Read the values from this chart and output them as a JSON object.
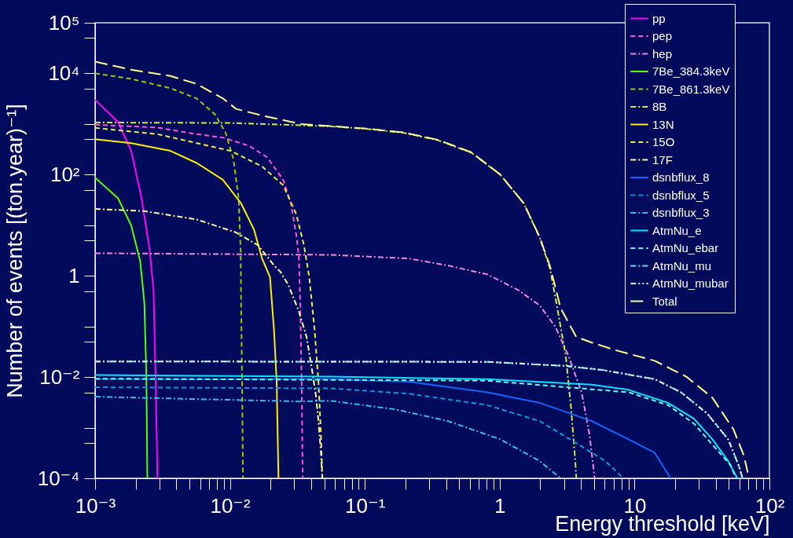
{
  "chart_data": {
    "type": "line",
    "xlabel": "Energy threshold [keV]",
    "ylabel": "Number of events [(ton.year)⁻¹]",
    "log": "xy",
    "grid": false,
    "legend": "top right",
    "xlim": [
      0.001,
      100
    ],
    "ylim": [
      0.0001,
      100000
    ],
    "xticks": [
      {
        "value": 0.001,
        "label": "10⁻³"
      },
      {
        "value": 0.002,
        "label": null
      },
      {
        "value": 0.003,
        "label": null
      },
      {
        "value": 0.004,
        "label": null
      },
      {
        "value": 0.005,
        "label": null
      },
      {
        "value": 0.006,
        "label": null
      },
      {
        "value": 0.007,
        "label": null
      },
      {
        "value": 0.008,
        "label": null
      },
      {
        "value": 0.009,
        "label": null
      },
      {
        "value": 0.01,
        "label": "10⁻²"
      },
      {
        "value": 0.02,
        "label": null
      },
      {
        "value": 0.03,
        "label": null
      },
      {
        "value": 0.04,
        "label": null
      },
      {
        "value": 0.05,
        "label": null
      },
      {
        "value": 0.06,
        "label": null
      },
      {
        "value": 0.07,
        "label": null
      },
      {
        "value": 0.08,
        "label": null
      },
      {
        "value": 0.09,
        "label": null
      },
      {
        "value": 0.1,
        "label": "10⁻¹"
      },
      {
        "value": 0.2,
        "label": null
      },
      {
        "value": 0.3,
        "label": null
      },
      {
        "value": 0.4,
        "label": null
      },
      {
        "value": 0.5,
        "label": null
      },
      {
        "value": 0.6,
        "label": null
      },
      {
        "value": 0.7,
        "label": null
      },
      {
        "value": 0.8,
        "label": null
      },
      {
        "value": 0.9,
        "label": null
      },
      1,
      {
        "value": 2,
        "label": null
      },
      {
        "value": 3,
        "label": null
      },
      {
        "value": 4,
        "label": null
      },
      {
        "value": 5,
        "label": null
      },
      {
        "value": 6,
        "label": null
      },
      {
        "value": 7,
        "label": null
      },
      {
        "value": 8,
        "label": null
      },
      {
        "value": 9,
        "label": null
      },
      10,
      {
        "value": 20,
        "label": null
      },
      {
        "value": 30,
        "label": null
      },
      {
        "value": 40,
        "label": null
      },
      {
        "value": 50,
        "label": null
      },
      {
        "value": 60,
        "label": null
      },
      {
        "value": 70,
        "label": null
      },
      {
        "value": 80,
        "label": null
      },
      {
        "value": 90,
        "label": null
      },
      {
        "value": 100,
        "label": "10²"
      }
    ],
    "yticks": [
      {
        "value": 0.0001,
        "label": "10⁻⁴"
      },
      {
        "value": 0.0005,
        "label": null
      },
      {
        "value": 0.001,
        "label": null
      },
      {
        "value": 0.005,
        "label": null
      },
      {
        "value": 0.01,
        "label": "10⁻²"
      },
      {
        "value": 0.05,
        "label": null
      },
      {
        "value": 0.1,
        "label": null
      },
      {
        "value": 0.5,
        "label": null
      },
      1,
      {
        "value": 5,
        "label": null
      },
      {
        "value": 10,
        "label": null
      },
      {
        "value": 50,
        "label": null
      },
      {
        "value": 100,
        "label": "10²"
      },
      {
        "value": 500,
        "label": null
      },
      {
        "value": 1000,
        "label": null
      },
      {
        "value": 5000,
        "label": null
      },
      {
        "value": 10000,
        "label": "10⁴"
      },
      {
        "value": 50000,
        "label": null
      },
      {
        "value": 100000,
        "label": "10⁵"
      }
    ],
    "series": [
      {
        "name": "pp",
        "color": "#ff00ff",
        "line_style": "solid",
        "x": [
          0.001,
          0.00148,
          0.00185,
          0.00221,
          0.00254,
          0.00271,
          0.00281,
          0.0029
        ],
        "values": [
          3000,
          1100,
          295,
          34,
          3.2,
          0.52,
          0.01,
          0.0001
        ]
      },
      {
        "name": "pep",
        "color": "#ff55dd",
        "line_style": "dashed",
        "x": [
          0.001,
          0.0029,
          0.00566,
          0.00886,
          0.01387,
          0.0189,
          0.0248,
          0.0283,
          0.031,
          0.0324,
          0.0332,
          0.034,
          0.0346
        ],
        "values": [
          970,
          850,
          630,
          540,
          370,
          220,
          79,
          27,
          6.5,
          2.5,
          0.29,
          0.0081,
          0.0001
        ]
      },
      {
        "name": "hep",
        "color": "#ee88dd",
        "line_style": "dashdot",
        "x": [
          0.001,
          0.0555,
          0.212,
          0.414,
          0.81,
          1.38,
          1.98,
          2.59,
          3.24,
          4.05,
          4.63,
          5.06
        ],
        "values": [
          2.8,
          2.6,
          2.2,
          1.6,
          1.07,
          0.52,
          0.26,
          0.098,
          0.026,
          0.005,
          0.00074,
          0.0001
        ]
      },
      {
        "name": "7Be_384.3keV",
        "color": "#55ff00",
        "line_style": "solid",
        "x": [
          0.001,
          0.00148,
          0.00185,
          0.00216,
          0.00232,
          0.0024,
          0.00244
        ],
        "values": [
          87,
          34,
          10,
          1.95,
          0.29,
          0.01,
          0.0001
        ]
      },
      {
        "name": "7Be_861.3keV",
        "color": "#99cc00",
        "line_style": "dashed",
        "x": [
          0.001,
          0.00185,
          0.00362,
          0.00566,
          0.00774,
          0.00927,
          0.0106,
          0.0116,
          0.012,
          0.0121,
          0.0123,
          0.0125
        ],
        "values": [
          10000,
          7800,
          5100,
          3200,
          1550,
          680,
          204,
          34,
          3.2,
          0.29,
          0.0081,
          0.0001
        ]
      },
      {
        "name": "8B",
        "color": "#ccee44",
        "line_style": "dashdot",
        "x": [
          0.001,
          0.01,
          0.0555,
          0.1035,
          0.194,
          0.346,
          0.618,
          1.01,
          1.51,
          1.98,
          2.36,
          2.7,
          3.09,
          3.38,
          3.61,
          3.7
        ],
        "values": [
          1070,
          1050,
          900,
          800,
          670,
          480,
          270,
          100,
          27,
          5.7,
          1.4,
          0.2,
          0.026,
          0.0025,
          0.00028,
          0.0001
        ]
      },
      {
        "name": "13N",
        "color": "#ffee00",
        "line_style": "solid",
        "x": [
          0.001,
          0.00185,
          0.00362,
          0.00566,
          0.00886,
          0.0121,
          0.0151,
          0.0173,
          0.0198,
          0.0212,
          0.0222,
          0.0229
        ],
        "values": [
          500,
          420,
          295,
          170,
          79,
          27,
          8.1,
          2.2,
          0.95,
          0.087,
          0.0081,
          0.0001
        ]
      },
      {
        "name": "15O",
        "color": "#eeee44",
        "line_style": "dashed",
        "x": [
          0.001,
          0.0029,
          0.00566,
          0.0101,
          0.0173,
          0.0248,
          0.031,
          0.0354,
          0.0387,
          0.0424,
          0.0453,
          0.0473,
          0.0484
        ],
        "values": [
          840,
          630,
          420,
          295,
          145,
          62,
          16.6,
          4,
          0.95,
          0.087,
          0.0081,
          0.00074,
          0.0001
        ]
      },
      {
        "name": "17F",
        "color": "#ffff99",
        "line_style": "dashdot",
        "x": [
          0.001,
          0.00232,
          0.00566,
          0.0111,
          0.0162,
          0.0215,
          0.0237,
          0.0271,
          0.0324,
          0.037,
          0.0405,
          0.0433,
          0.0453,
          0.0473,
          0.0484
        ],
        "values": [
          21,
          19,
          13,
          7.2,
          4,
          1.55,
          1.2,
          0.66,
          0.2,
          0.062,
          0.0145,
          0.0045,
          0.00135,
          0.00032,
          0.0001
        ]
      },
      {
        "name": "dsnbflux_8",
        "color": "#1166ff",
        "line_style": "solid",
        "x": [
          0.001,
          0.0555,
          0.212,
          0.81,
          1.98,
          4.83,
          9.04,
          14.1,
          18.5
        ],
        "values": [
          0.0091,
          0.0091,
          0.0081,
          0.005,
          0.0031,
          0.00135,
          0.00059,
          0.00032,
          0.0001
        ]
      },
      {
        "name": "dsnbflux_5",
        "color": "#0099dd",
        "line_style": "dashed",
        "x": [
          0.001,
          0.0555,
          0.212,
          0.81,
          1.98,
          3.87,
          6.06,
          8.26
        ],
        "values": [
          0.0063,
          0.006,
          0.0047,
          0.0028,
          0.00135,
          0.00046,
          0.00022,
          0.0001
        ]
      },
      {
        "name": "dsnbflux_3",
        "color": "#33bbee",
        "line_style": "dashdot",
        "x": [
          0.001,
          0.0324,
          0.0555,
          0.169,
          0.414,
          1.01,
          1.98,
          2.83
        ],
        "values": [
          0.0041,
          0.0033,
          0.0034,
          0.0023,
          0.00135,
          0.00059,
          0.00022,
          0.0001
        ]
      },
      {
        "name": "AtmNu_e",
        "color": "#00e5ff",
        "line_style": "solid",
        "x": [
          0.001,
          0.0555,
          0.81,
          4.83,
          9.04,
          17.7,
          27.6,
          37.8,
          49.4,
          57.8
        ],
        "values": [
          0.011,
          0.0102,
          0.0091,
          0.0071,
          0.0056,
          0.0031,
          0.0015,
          0.00059,
          0.00022,
          0.0001
        ]
      },
      {
        "name": "AtmNu_ebar",
        "color": "#66ffff",
        "line_style": "dashed",
        "x": [
          0.001,
          0.81,
          9.04,
          17.7,
          27.6,
          37.8,
          51.6,
          56.5
        ],
        "values": [
          0.0093,
          0.0085,
          0.005,
          0.0028,
          0.0012,
          0.00046,
          0.00018,
          0.0001
        ]
      },
      {
        "name": "AtmNu_mu",
        "color": "#66ddee",
        "line_style": "dashdot",
        "x": [
          0.001,
          0.81,
          3.09,
          5.78,
          14.1,
          22.1,
          34.6,
          49.4,
          59.2,
          63.2
        ],
        "values": [
          0.0204,
          0.02,
          0.0166,
          0.0138,
          0.0091,
          0.005,
          0.0019,
          0.00059,
          0.00018,
          0.0001
        ]
      },
      {
        "name": "AtmNu_mubar",
        "color": "#ccf5ff",
        "line_style": "dashdotdot",
        "x": [
          0.001,
          0.81,
          3.09,
          5.78,
          14.1,
          22.1,
          34.6,
          49.4,
          59.2,
          63.2
        ],
        "values": [
          0.0204,
          0.02,
          0.0166,
          0.0138,
          0.0091,
          0.005,
          0.0019,
          0.00059,
          0.00018,
          0.0001
        ]
      },
      {
        "name": "Total",
        "color": "#ffff88",
        "line_style": "longdash",
        "x": [
          0.001,
          0.00185,
          0.00362,
          0.00566,
          0.00886,
          0.0111,
          0.0173,
          0.0338,
          0.0555,
          0.1035,
          0.194,
          0.346,
          0.618,
          1.01,
          1.51,
          1.98,
          2.36,
          2.83,
          3.7,
          4.83,
          7.22,
          14.1,
          24.2,
          37.8,
          54.1,
          64.7,
          70.6
        ],
        "values": [
          17000,
          11800,
          8900,
          6200,
          3200,
          1990,
          1470,
          1000,
          910,
          810,
          680,
          490,
          275,
          100,
          27,
          5.8,
          1.55,
          0.23,
          0.062,
          0.048,
          0.034,
          0.021,
          0.0102,
          0.0039,
          0.00093,
          0.00028,
          0.0001
        ]
      }
    ]
  }
}
